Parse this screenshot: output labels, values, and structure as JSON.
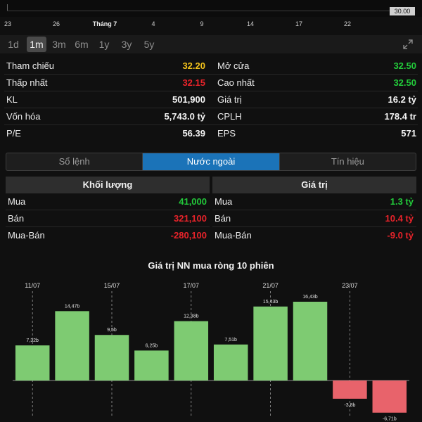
{
  "top_chart": {
    "price_tag": "30.00"
  },
  "date_axis": [
    "23",
    "26",
    "Tháng 7",
    "4",
    "9",
    "14",
    "17",
    "22"
  ],
  "range_tabs": {
    "items": [
      "1d",
      "1m",
      "3m",
      "6m",
      "1y",
      "3y",
      "5y"
    ],
    "selected": "1m"
  },
  "stats": {
    "left": [
      {
        "label": "Tham chiếu",
        "value": "32.20",
        "color": "yellow"
      },
      {
        "label": "Thấp nhất",
        "value": "32.15",
        "color": "red"
      },
      {
        "label": "KL",
        "value": "501,900",
        "color": "white"
      },
      {
        "label": "Vốn hóa",
        "value": "5,743.0 tỷ",
        "color": "white"
      },
      {
        "label": "P/E",
        "value": "56.39",
        "color": "white"
      }
    ],
    "right": [
      {
        "label": "Mở cửa",
        "value": "32.50",
        "color": "green"
      },
      {
        "label": "Cao nhất",
        "value": "32.50",
        "color": "green"
      },
      {
        "label": "Giá trị",
        "value": "16.2 tỷ",
        "color": "white"
      },
      {
        "label": "CPLH",
        "value": "178.4 tr",
        "color": "white"
      },
      {
        "label": "EPS",
        "value": "571",
        "color": "white"
      }
    ]
  },
  "segments": {
    "items": [
      "Sổ lệnh",
      "Nước ngoài",
      "Tín hiệu"
    ],
    "selected": "Nước ngoài"
  },
  "foreign": {
    "volume": {
      "header": "Khối lượng",
      "rows": [
        {
          "label": "Mua",
          "value": "41,000",
          "color": "green"
        },
        {
          "label": "Bán",
          "value": "321,100",
          "color": "red"
        },
        {
          "label": "Mua-Bán",
          "value": "-280,100",
          "color": "red"
        }
      ]
    },
    "value": {
      "header": "Giá trị",
      "rows": [
        {
          "label": "Mua",
          "value": "1.3 tỷ",
          "color": "green"
        },
        {
          "label": "Bán",
          "value": "10.4 tỷ",
          "color": "red"
        },
        {
          "label": "Mua-Bán",
          "value": "-9.0 tỷ",
          "color": "red"
        }
      ]
    }
  },
  "chart_data": {
    "type": "bar",
    "title": "Giá trị NN mua ròng 10 phiên",
    "categories": [
      "11/07",
      "",
      "15/07",
      "",
      "17/07",
      "",
      "21/07",
      "",
      "23/07",
      ""
    ],
    "values": [
      7.32,
      14.47,
      9.5,
      6.25,
      12.38,
      7.51,
      15.43,
      16.43,
      -3.8,
      -6.71
    ],
    "value_labels": [
      "7,32b",
      "14,47b",
      "9,5b",
      "6,25b",
      "12,38b",
      "7,51b",
      "15,43b",
      "16,43b",
      "-3,8b",
      "-6,71b"
    ],
    "positive_color": "#7ecb72",
    "negative_color": "#e8636b",
    "grid": "dashed vertical lines at labeled dates",
    "legend": "none"
  }
}
